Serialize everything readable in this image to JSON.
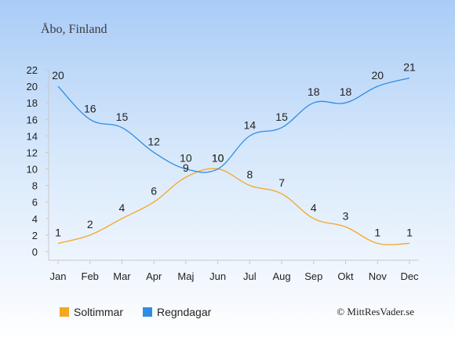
{
  "chart_data": {
    "type": "line",
    "title": "Åbo, Finland",
    "categories": [
      "Jan",
      "Feb",
      "Mar",
      "Apr",
      "Maj",
      "Jun",
      "Jul",
      "Aug",
      "Sep",
      "Okt",
      "Nov",
      "Dec"
    ],
    "series": [
      {
        "name": "Soltimmar",
        "color": "#f5a623",
        "values": [
          1,
          2,
          4,
          6,
          9,
          10,
          8,
          7,
          4,
          3,
          1,
          1
        ]
      },
      {
        "name": "Regndagar",
        "color": "#2f8de4",
        "values": [
          20,
          16,
          15,
          12,
          10,
          10,
          14,
          15,
          18,
          18,
          20,
          21
        ]
      }
    ],
    "y_ticks": [
      0,
      2,
      4,
      6,
      8,
      10,
      12,
      14,
      16,
      18,
      20,
      22
    ],
    "ylim": [
      0,
      22
    ],
    "grid": false,
    "legend_position": "bottom"
  },
  "credit": "© MittResVader.se"
}
